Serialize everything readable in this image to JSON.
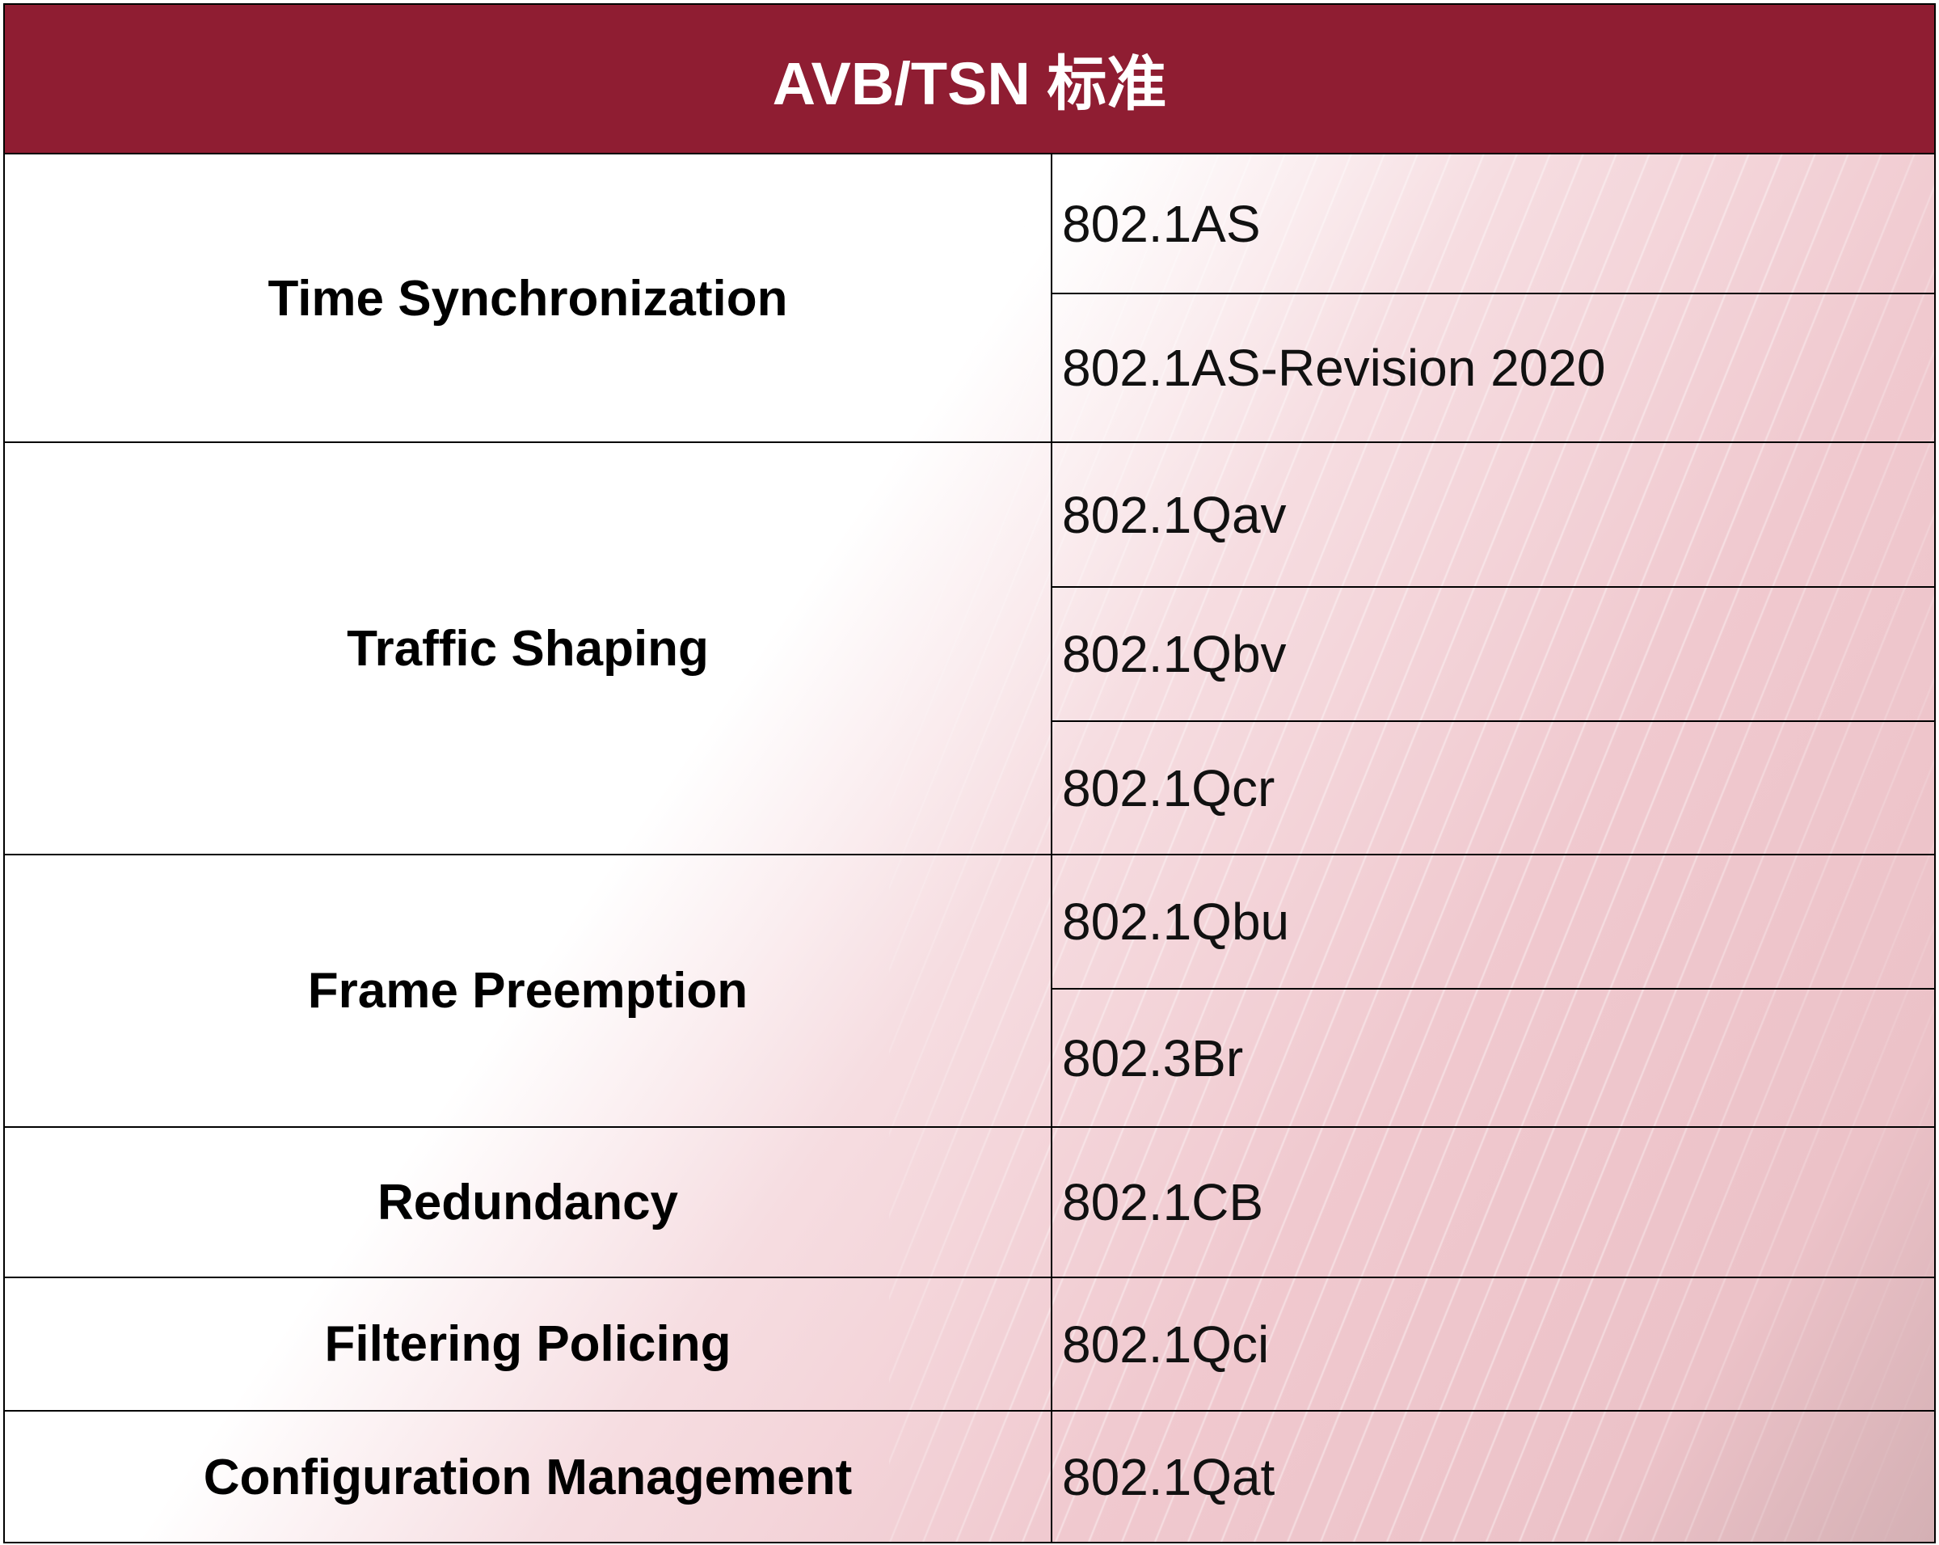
{
  "title": "AVB/TSN 标准",
  "colors": {
    "header": "#8f1d32",
    "accent_pink": "#f0c9cf",
    "header_text": "#ffffff"
  },
  "groups": [
    {
      "category": "Time Synchronization",
      "standards": [
        "802.1AS",
        "802.1AS-Revision 2020"
      ]
    },
    {
      "category": "Traffic Shaping",
      "standards": [
        "802.1Qav",
        "802.1Qbv",
        "802.1Qcr"
      ]
    },
    {
      "category": "Frame Preemption",
      "standards": [
        "802.1Qbu",
        "802.3Br"
      ]
    },
    {
      "category": "Redundancy",
      "standards": [
        "802.1CB"
      ]
    },
    {
      "category": "Filtering Policing",
      "standards": [
        "802.1Qci"
      ]
    },
    {
      "category": "Configuration Management",
      "standards": [
        "802.1Qat"
      ]
    }
  ]
}
